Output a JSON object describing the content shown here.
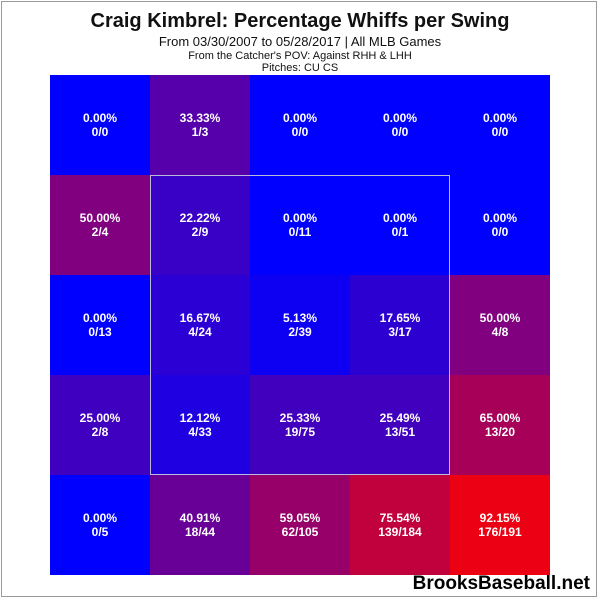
{
  "header": {
    "title": "Craig Kimbrel: Percentage Whiffs per Swing",
    "subtitle": "From 03/30/2007 to 05/28/2017 | All MLB Games",
    "pov": "From the Catcher's POV:  Against RHH & LHH",
    "pitches": "Pitches:  CU  CS"
  },
  "brand": "BrooksBaseball.net",
  "colors": {
    "low": "#0000ff",
    "high": "#ff0000"
  },
  "chart_data": {
    "type": "heatmap",
    "title": "Craig Kimbrel: Percentage Whiffs per Swing",
    "rows": 5,
    "cols": 5,
    "cells": [
      [
        {
          "pct": 0.0,
          "label": "0.00%",
          "count": "0/0"
        },
        {
          "pct": 33.33,
          "label": "33.33%",
          "count": "1/3"
        },
        {
          "pct": 0.0,
          "label": "0.00%",
          "count": "0/0"
        },
        {
          "pct": 0.0,
          "label": "0.00%",
          "count": "0/0"
        },
        {
          "pct": 0.0,
          "label": "0.00%",
          "count": "0/0"
        }
      ],
      [
        {
          "pct": 50.0,
          "label": "50.00%",
          "count": "2/4"
        },
        {
          "pct": 22.22,
          "label": "22.22%",
          "count": "2/9"
        },
        {
          "pct": 0.0,
          "label": "0.00%",
          "count": "0/11"
        },
        {
          "pct": 0.0,
          "label": "0.00%",
          "count": "0/1"
        },
        {
          "pct": 0.0,
          "label": "0.00%",
          "count": "0/0"
        }
      ],
      [
        {
          "pct": 0.0,
          "label": "0.00%",
          "count": "0/13"
        },
        {
          "pct": 16.67,
          "label": "16.67%",
          "count": "4/24"
        },
        {
          "pct": 5.13,
          "label": "5.13%",
          "count": "2/39"
        },
        {
          "pct": 17.65,
          "label": "17.65%",
          "count": "3/17"
        },
        {
          "pct": 50.0,
          "label": "50.00%",
          "count": "4/8"
        }
      ],
      [
        {
          "pct": 25.0,
          "label": "25.00%",
          "count": "2/8"
        },
        {
          "pct": 12.12,
          "label": "12.12%",
          "count": "4/33"
        },
        {
          "pct": 25.33,
          "label": "25.33%",
          "count": "19/75"
        },
        {
          "pct": 25.49,
          "label": "25.49%",
          "count": "13/51"
        },
        {
          "pct": 65.0,
          "label": "65.00%",
          "count": "13/20"
        }
      ],
      [
        {
          "pct": 0.0,
          "label": "0.00%",
          "count": "0/5"
        },
        {
          "pct": 40.91,
          "label": "40.91%",
          "count": "18/44"
        },
        {
          "pct": 59.05,
          "label": "59.05%",
          "count": "62/105"
        },
        {
          "pct": 75.54,
          "label": "75.54%",
          "count": "139/184"
        },
        {
          "pct": 92.15,
          "label": "92.15%",
          "count": "176/191"
        }
      ]
    ],
    "strike_zone": {
      "row_start": 1,
      "row_end": 3,
      "col_start": 1,
      "col_end": 3
    }
  }
}
